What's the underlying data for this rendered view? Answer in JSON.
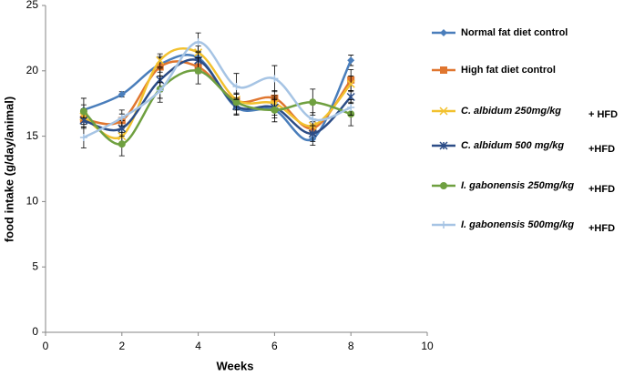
{
  "chart_data": {
    "type": "line",
    "x_label": "Weeks",
    "y_label": "food intake  (g/day/animal)",
    "x": [
      1,
      2,
      3,
      4,
      5,
      6,
      7,
      8
    ],
    "xlim": [
      0,
      10
    ],
    "xticks": [
      0,
      2,
      4,
      6,
      8,
      10
    ],
    "ylim": [
      0,
      25
    ],
    "yticks": [
      0,
      5,
      10,
      15,
      20,
      25
    ],
    "smooth": true,
    "series": [
      {
        "name": "Normal fat diet control",
        "color": "#4a7ebb",
        "marker": "diamond",
        "values": [
          17.0,
          18.2,
          20.5,
          21.0,
          17.2,
          17.0,
          14.8,
          20.8
        ],
        "errors": [
          0.9,
          0.2,
          0.6,
          0.5,
          0.6,
          0.6,
          0.5,
          0.4
        ]
      },
      {
        "name": "High fat diet control",
        "color": "#e0762f",
        "marker": "square",
        "values": [
          16.3,
          16.2,
          20.3,
          20.3,
          17.7,
          17.9,
          15.6,
          19.3
        ],
        "errors": [
          0.6,
          0.5,
          0.7,
          0.5,
          0.5,
          0.6,
          0.5,
          0.8
        ]
      },
      {
        "name": "C. albidum 250mg/kg",
        "name_suffix": "+ HFD",
        "color": "#f2c12e",
        "marker": "x",
        "values": [
          16.5,
          15.0,
          20.8,
          21.4,
          17.8,
          17.5,
          15.8,
          19.0
        ],
        "errors": [
          0.6,
          0.6,
          0.5,
          0.5,
          0.5,
          0.6,
          0.5,
          0.6
        ]
      },
      {
        "name": "C. albidum 500 mg/kg",
        "name_suffix": "+HFD",
        "color": "#2c4d87",
        "marker": "star",
        "values": [
          16.2,
          15.6,
          19.3,
          20.8,
          17.3,
          17.2,
          15.2,
          18.0
        ],
        "errors": [
          0.6,
          0.6,
          0.9,
          0.6,
          0.6,
          0.6,
          0.6,
          0.5
        ]
      },
      {
        "name": "I. gabonensis 250mg/kg",
        "name_suffix": "+HFD",
        "color": "#6fa040",
        "marker": "circle",
        "values": [
          16.9,
          14.4,
          18.6,
          20.0,
          17.6,
          17.0,
          17.6,
          16.7
        ],
        "errors": [
          0.5,
          0.9,
          1.0,
          1.0,
          0.6,
          0.9,
          1.0,
          0.9
        ]
      },
      {
        "name": "I. gabonensis 500mg/kg",
        "name_suffix": "+HFD",
        "color": "#a6c4e4",
        "marker": "plus",
        "values": [
          14.9,
          16.4,
          18.5,
          22.2,
          18.8,
          19.4,
          16.3,
          17.2
        ],
        "errors": [
          0.8,
          0.6,
          0.6,
          0.7,
          1.0,
          1.0,
          0.5,
          0.6
        ]
      }
    ]
  }
}
